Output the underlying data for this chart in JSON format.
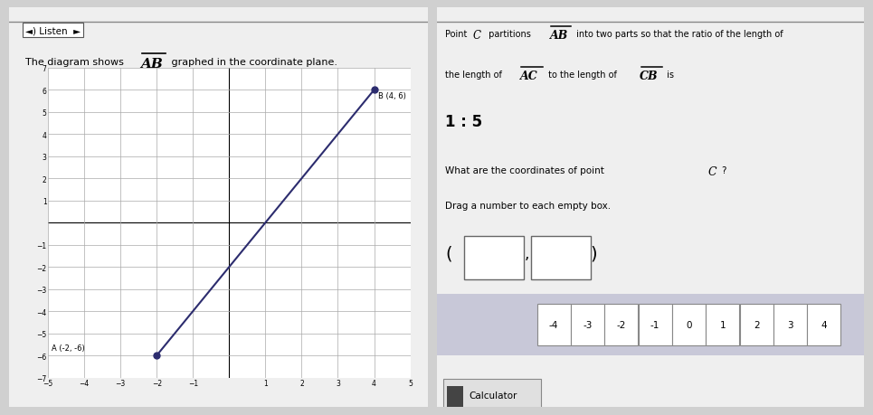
{
  "bg_color": "#d0d0d0",
  "panel_bg": "#efefef",
  "left_panel": {
    "listen_btn": "Listen",
    "description_normal": "The diagram shows ",
    "description_bold": "AB",
    "description_rest": " graphed in the coordinate plane.",
    "point_A": [
      -2,
      -6
    ],
    "point_B": [
      4,
      6
    ],
    "xlim": [
      -5,
      5
    ],
    "ylim": [
      -7,
      7
    ],
    "xticks": [
      -5,
      -4,
      -3,
      -2,
      -1,
      1,
      2,
      3,
      4,
      5
    ],
    "yticks": [
      -7,
      -6,
      -5,
      -4,
      -3,
      -2,
      -1,
      1,
      2,
      3,
      4,
      5,
      6,
      7
    ],
    "line_color": "#2c2c6e",
    "point_color": "#2c2c6e",
    "label_A": "A (-2, -6)",
    "label_B": "B (4, 6)",
    "grid_color": "#aaaaaa"
  },
  "right_panel": {
    "ratio": "1 : 5",
    "number_tiles": [
      -4,
      -3,
      -2,
      -1,
      0,
      1,
      2,
      3,
      4
    ],
    "tile_bg": "#c8c8d8",
    "tile_box_bg": "#ffffff",
    "calc_label": "Calculator"
  }
}
